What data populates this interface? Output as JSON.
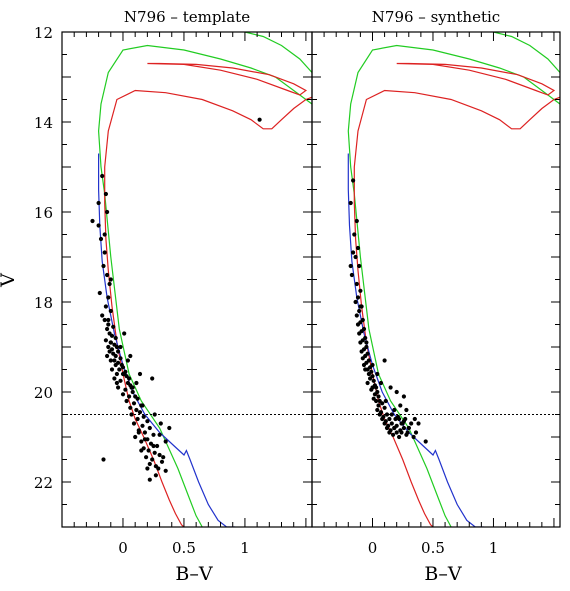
{
  "chart_data": [
    {
      "type": "scatter",
      "title": "N796 – template",
      "xlabel": "B–V",
      "ylabel": "V",
      "xlim": [
        -0.5,
        1.55
      ],
      "ylim": [
        23,
        12
      ],
      "y_inverted": true,
      "x_ticks": [
        0,
        0.5,
        1
      ],
      "x_tick_labels": [
        "0",
        "0.5",
        "1"
      ],
      "y_ticks": [
        12,
        14,
        16,
        18,
        20,
        22
      ],
      "y_tick_labels": [
        "12",
        "14",
        "16",
        "18",
        "20",
        "22"
      ],
      "grid": false,
      "reference_line": {
        "y": 20.5,
        "style": "dotted",
        "color": "#000000"
      },
      "series": [
        {
          "kind": "isochrone",
          "color": "#22cc22",
          "x": [
            -0.19,
            -0.18,
            -0.15,
            -0.1,
            -0.03,
            0.05,
            0.15,
            0.3,
            0.45,
            0.55,
            0.6,
            0.63,
            0.65
          ],
          "y": [
            14.6,
            15.0,
            15.6,
            17.0,
            18.6,
            19.6,
            20.2,
            20.8,
            21.7,
            22.4,
            22.75,
            22.9,
            23.0
          ]
        },
        {
          "kind": "isochrone",
          "color": "#22cc22",
          "x": [
            -0.19,
            -0.2,
            -0.18,
            -0.12,
            0.0,
            0.2,
            0.5,
            0.8,
            1.05,
            1.25,
            1.4,
            1.55
          ],
          "y": [
            14.6,
            14.2,
            13.6,
            12.9,
            12.4,
            12.3,
            12.4,
            12.6,
            12.8,
            13.0,
            13.3,
            13.6
          ]
        },
        {
          "kind": "isochrone",
          "color": "#22cc22",
          "x": [
            1.0,
            1.15,
            1.3,
            1.45,
            1.55
          ],
          "y": [
            12.0,
            12.1,
            12.3,
            12.6,
            12.9
          ]
        },
        {
          "kind": "isochrone",
          "color": "#dd2222",
          "x": [
            -0.15,
            -0.14,
            -0.12,
            -0.09,
            -0.05,
            0.0,
            0.05,
            0.1,
            0.17,
            0.25,
            0.32,
            0.38,
            0.43,
            0.48,
            0.5
          ],
          "y": [
            15.8,
            16.6,
            17.3,
            18.1,
            18.9,
            19.6,
            20.2,
            20.6,
            21.0,
            21.5,
            22.0,
            22.4,
            22.7,
            22.95,
            23.0
          ]
        },
        {
          "kind": "isochrone",
          "color": "#dd2222",
          "x": [
            -0.15,
            -0.15,
            -0.12,
            -0.05,
            0.1,
            0.35,
            0.65,
            0.9,
            1.05,
            1.15,
            1.22,
            1.3,
            1.4,
            1.5,
            1.55
          ],
          "y": [
            15.8,
            15.0,
            14.2,
            13.5,
            13.3,
            13.35,
            13.5,
            13.75,
            13.95,
            14.15,
            14.15,
            13.95,
            13.7,
            13.5,
            13.45
          ]
        },
        {
          "kind": "isochrone",
          "color": "#dd2222",
          "x": [
            0.2,
            0.5,
            0.8,
            1.1,
            1.35,
            1.45,
            1.5,
            1.4,
            1.2,
            0.9,
            0.6,
            0.3,
            0.2
          ],
          "y": [
            12.7,
            12.72,
            12.85,
            13.05,
            13.3,
            13.4,
            13.3,
            13.15,
            12.95,
            12.8,
            12.72,
            12.7,
            12.7
          ]
        },
        {
          "kind": "isochrone",
          "color": "#2233cc",
          "x": [
            -0.2,
            -0.2,
            -0.19,
            -0.17,
            -0.13,
            -0.07,
            0.0,
            0.08,
            0.18,
            0.3,
            0.42,
            0.5,
            0.52,
            0.55,
            0.62,
            0.7,
            0.78,
            0.85,
            0.9,
            0.92
          ],
          "y": [
            14.7,
            15.5,
            16.3,
            17.1,
            17.9,
            18.7,
            19.4,
            20.0,
            20.5,
            20.9,
            21.2,
            21.4,
            21.3,
            21.5,
            22.0,
            22.5,
            22.85,
            23.0,
            23.0,
            23.0
          ]
        }
      ],
      "points": {
        "color": "#000000",
        "x": [
          -0.17,
          -0.14,
          -0.13,
          -0.2,
          -0.18,
          -0.15,
          -0.16,
          -0.13,
          -0.11,
          -0.19,
          -0.12,
          -0.14,
          -0.1,
          -0.17,
          -0.15,
          -0.12,
          -0.08,
          -0.13,
          -0.11,
          -0.09,
          -0.06,
          -0.14,
          -0.1,
          -0.07,
          -0.12,
          -0.05,
          -0.09,
          -0.11,
          -0.04,
          -0.08,
          -0.06,
          -0.13,
          -0.02,
          -0.07,
          -0.1,
          -0.04,
          -0.01,
          -0.06,
          0.0,
          -0.09,
          -0.03,
          0.02,
          -0.05,
          0.01,
          0.03,
          -0.07,
          0.05,
          -0.02,
          0.04,
          0.06,
          -0.04,
          0.07,
          0.02,
          0.08,
          0.0,
          0.1,
          0.05,
          0.12,
          0.03,
          0.09,
          0.15,
          0.06,
          0.11,
          0.14,
          0.07,
          0.17,
          0.12,
          0.2,
          0.09,
          0.16,
          0.22,
          0.13,
          0.18,
          0.25,
          0.1,
          0.2,
          0.15,
          0.23,
          0.28,
          0.17,
          0.21,
          0.26,
          0.3,
          0.19,
          0.24,
          0.32,
          0.22,
          0.27,
          0.29,
          0.35,
          0.18,
          0.33,
          0.25,
          0.2,
          0.3,
          0.15,
          0.27,
          0.31,
          0.22,
          0.35,
          -0.05,
          -0.1,
          0.0,
          -0.12,
          0.08,
          0.04,
          -0.02,
          0.14,
          0.01,
          0.11,
          0.06,
          0.26,
          -0.1,
          0.16,
          -0.15,
          0.38,
          1.12,
          -0.2,
          -0.25,
          -0.16,
          0.24,
          0.13
        ],
        "y": [
          15.2,
          15.6,
          16.0,
          16.3,
          16.6,
          16.9,
          17.2,
          17.4,
          17.6,
          17.8,
          17.9,
          18.1,
          18.2,
          18.3,
          18.4,
          18.5,
          18.55,
          18.6,
          18.7,
          18.75,
          18.8,
          18.85,
          18.9,
          18.95,
          19.0,
          19.0,
          19.05,
          19.1,
          19.1,
          19.15,
          19.2,
          19.2,
          19.25,
          19.3,
          19.3,
          19.35,
          19.4,
          19.4,
          19.45,
          19.5,
          19.5,
          19.55,
          19.6,
          19.6,
          19.65,
          19.7,
          19.7,
          19.75,
          19.8,
          19.85,
          19.9,
          19.9,
          19.95,
          20.0,
          20.05,
          20.1,
          20.1,
          20.15,
          20.2,
          20.25,
          20.3,
          20.35,
          20.4,
          20.45,
          20.5,
          20.55,
          20.6,
          20.65,
          20.7,
          20.75,
          20.8,
          20.85,
          20.9,
          20.95,
          21.0,
          21.05,
          21.1,
          21.15,
          21.2,
          21.25,
          21.3,
          21.35,
          21.4,
          21.45,
          21.5,
          21.55,
          21.6,
          21.65,
          21.7,
          21.75,
          21.05,
          21.45,
          21.2,
          21.7,
          20.95,
          21.3,
          21.85,
          20.7,
          21.95,
          21.1,
          19.8,
          18.9,
          19.6,
          18.4,
          19.9,
          19.3,
          19.0,
          19.6,
          18.7,
          19.8,
          19.2,
          20.5,
          17.5,
          20.3,
          16.5,
          20.8,
          13.95,
          15.8,
          16.2,
          21.5,
          19.7,
          20.9
        ]
      }
    },
    {
      "type": "scatter",
      "title": "N796 – synthetic",
      "xlabel": "B–V",
      "ylabel": "",
      "xlim": [
        -0.5,
        1.55
      ],
      "ylim": [
        23,
        12
      ],
      "y_inverted": true,
      "x_ticks": [
        0,
        0.5,
        1
      ],
      "x_tick_labels": [
        "0",
        "0.5",
        "1"
      ],
      "y_ticks": [
        12,
        14,
        16,
        18,
        20,
        22
      ],
      "grid": false,
      "reference_line": {
        "y": 20.5,
        "style": "dotted",
        "color": "#000000"
      },
      "series_same_as_left": true,
      "points": {
        "color": "#000000",
        "x": [
          -0.16,
          -0.18,
          -0.13,
          -0.15,
          -0.12,
          -0.14,
          -0.11,
          -0.17,
          -0.13,
          -0.1,
          -0.12,
          -0.14,
          -0.09,
          -0.11,
          -0.13,
          -0.08,
          -0.1,
          -0.12,
          -0.07,
          -0.09,
          -0.11,
          -0.06,
          -0.08,
          -0.1,
          -0.05,
          -0.07,
          -0.09,
          -0.04,
          -0.06,
          -0.08,
          -0.03,
          -0.05,
          -0.07,
          -0.02,
          -0.04,
          -0.06,
          -0.01,
          -0.03,
          0.0,
          -0.02,
          0.01,
          -0.04,
          0.02,
          0.0,
          0.03,
          -0.01,
          0.04,
          0.02,
          0.05,
          0.01,
          0.06,
          0.03,
          0.08,
          0.05,
          0.1,
          0.04,
          0.07,
          0.12,
          0.06,
          0.09,
          0.14,
          0.08,
          0.11,
          0.16,
          0.1,
          0.13,
          0.18,
          0.12,
          0.15,
          0.2,
          0.14,
          0.17,
          0.22,
          0.16,
          0.19,
          0.24,
          0.18,
          0.21,
          0.26,
          0.2,
          0.23,
          0.28,
          0.22,
          0.25,
          0.3,
          0.24,
          0.27,
          0.32,
          0.26,
          0.29,
          0.34,
          0.3,
          0.36,
          0.38,
          0.44,
          0.0,
          0.07,
          -0.05,
          0.11,
          0.18,
          -0.16,
          0.26,
          -0.18,
          0.04,
          0.15,
          0.23,
          0.35,
          0.1,
          -0.1,
          0.2,
          0.28
        ],
        "y": [
          15.3,
          15.8,
          16.2,
          16.5,
          16.8,
          17.0,
          17.2,
          17.4,
          17.6,
          17.75,
          17.9,
          18.0,
          18.1,
          18.2,
          18.3,
          18.4,
          18.45,
          18.5,
          18.6,
          18.65,
          18.7,
          18.8,
          18.85,
          18.9,
          19.0,
          19.05,
          19.1,
          19.15,
          19.2,
          19.25,
          19.3,
          19.35,
          19.4,
          19.45,
          19.5,
          19.5,
          19.55,
          19.6,
          19.65,
          19.7,
          19.75,
          19.8,
          19.85,
          19.9,
          19.9,
          19.95,
          20.0,
          20.05,
          20.1,
          20.15,
          20.2,
          20.2,
          20.25,
          20.3,
          20.35,
          20.4,
          20.45,
          20.5,
          20.5,
          20.55,
          20.6,
          20.6,
          20.65,
          20.7,
          20.7,
          20.75,
          20.8,
          20.8,
          20.85,
          20.9,
          20.9,
          20.95,
          21.0,
          20.5,
          20.6,
          20.7,
          20.8,
          20.55,
          20.65,
          20.75,
          20.85,
          20.95,
          20.6,
          20.7,
          20.8,
          20.9,
          20.6,
          20.7,
          20.8,
          20.9,
          21.0,
          20.8,
          20.9,
          20.7,
          21.1,
          19.4,
          19.8,
          18.9,
          20.2,
          20.4,
          16.9,
          20.1,
          17.2,
          19.6,
          19.9,
          20.3,
          20.6,
          19.3,
          18.1,
          20.0,
          20.4
        ]
      }
    }
  ]
}
